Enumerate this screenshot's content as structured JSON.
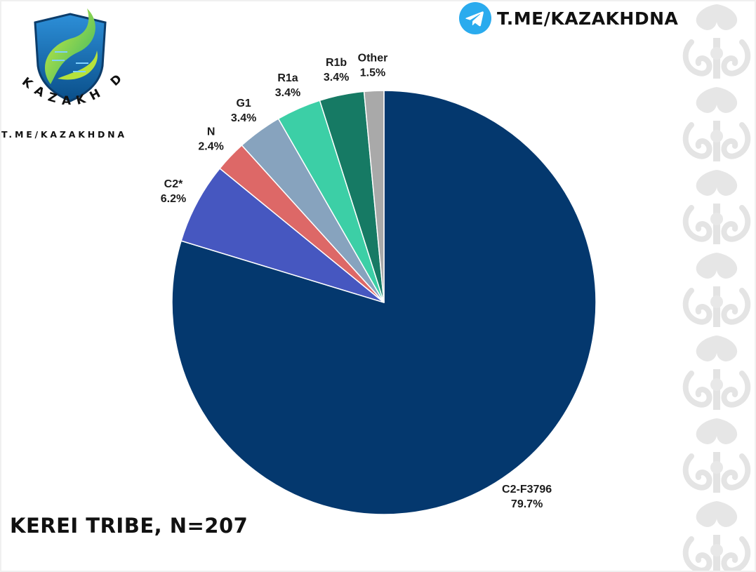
{
  "logo": {
    "brand_text": "KAZAKH DNA",
    "url_text": "T.ME/KAZAKHDNA"
  },
  "header": {
    "telegram_handle": "T.ME/KAZAKHDNA",
    "icon": "telegram-icon",
    "icon_color": "#2AABEE"
  },
  "caption": "KEREI TRIBE, N=207",
  "chart_data": {
    "type": "pie",
    "title": "",
    "start_angle_deg": 0,
    "direction": "clockwise",
    "slices": [
      {
        "label": "C2-F3796",
        "value": 79.7,
        "value_label": "79.7%",
        "color": "#04386E"
      },
      {
        "label": "C2*",
        "value": 6.2,
        "value_label": "6.2%",
        "color": "#4657C0"
      },
      {
        "label": "N",
        "value": 2.4,
        "value_label": "2.4%",
        "color": "#DD6867"
      },
      {
        "label": "G1",
        "value": 3.4,
        "value_label": "3.4%",
        "color": "#87A3BE"
      },
      {
        "label": "R1a",
        "value": 3.4,
        "value_label": "3.4%",
        "color": "#3CCFA6"
      },
      {
        "label": "R1b",
        "value": 3.4,
        "value_label": "3.4%",
        "color": "#167A64"
      },
      {
        "label": "Other",
        "value": 1.5,
        "value_label": "1.5%",
        "color": "#A9A9A9"
      }
    ]
  }
}
